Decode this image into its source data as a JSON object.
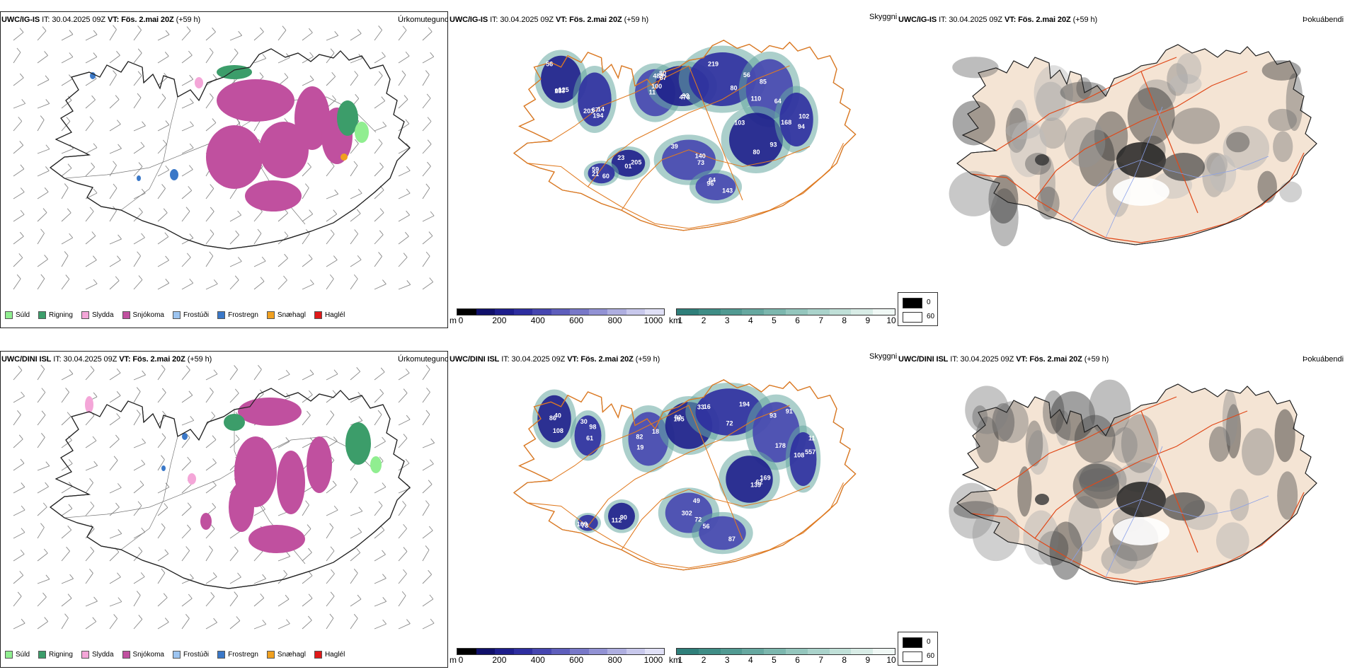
{
  "rows": [
    {
      "model": "UWC/IG-IS",
      "it_label": "IT:",
      "it_value": "30.04.2025 09Z",
      "vt_label": "VT:",
      "vt_value": "Fös. 2.mai 20Z",
      "lead": "(+59 h)"
    },
    {
      "model": "UWC/DINI ISL",
      "it_label": "IT:",
      "it_value": "30.04.2025 09Z",
      "vt_label": "VT:",
      "vt_value": "Fös. 2.mai 20Z",
      "lead": "(+59 h)"
    }
  ],
  "panel_titles": {
    "precip": "Úrkomutegund",
    "visibility": "Skyggni",
    "fog": "Þokuábendi"
  },
  "precip_legend": [
    {
      "label": "Súld",
      "color": "#90ee90"
    },
    {
      "label": "Rigning",
      "color": "#3c9d6a"
    },
    {
      "label": "Slydda",
      "color": "#f4a6d8"
    },
    {
      "label": "Snjókoma",
      "color": "#c0509f"
    },
    {
      "label": "Frostúði",
      "color": "#9cc4f0"
    },
    {
      "label": "Frostregn",
      "color": "#3a78c8"
    },
    {
      "label": "Snæhagl",
      "color": "#f0a020"
    },
    {
      "label": "Haglél",
      "color": "#e01818"
    }
  ],
  "vis_scale_m": {
    "unit": "m",
    "ticks": [
      "0",
      "200",
      "400",
      "600",
      "800",
      "1000"
    ],
    "colors": [
      "#000000",
      "#10106a",
      "#1e1e8c",
      "#2e2ea0",
      "#4646b0",
      "#5e5ebc",
      "#7878c8",
      "#9292d4",
      "#aeaee0",
      "#c8c8ec",
      "#e0e0f6"
    ]
  },
  "vis_scale_km": {
    "unit": "km",
    "ticks": [
      "1",
      "2",
      "3",
      "4",
      "5",
      "6",
      "7",
      "8",
      "9",
      "10"
    ],
    "colors": [
      "#2f7f7a",
      "#3f8d86",
      "#519a92",
      "#66a8a0",
      "#7cb7ae",
      "#94c6bd",
      "#aad3cb",
      "#c0e0d8",
      "#d8ece6",
      "#f0f8f5"
    ]
  },
  "fog_legend": [
    {
      "label": "0",
      "color": "#000000"
    },
    {
      "label": "60",
      "color": "#ffffff"
    }
  ],
  "vis_labels": {
    "row0": [
      "03",
      "67",
      "100",
      "80",
      "56",
      "110",
      "80",
      "168",
      "140",
      "23",
      "21",
      "143",
      "153",
      "194",
      "67",
      "92",
      "80",
      "64",
      "93",
      "102",
      "39",
      "205",
      "59",
      "96",
      "125",
      "203",
      "489",
      "473",
      "219",
      "85",
      "103",
      "94",
      "73",
      "01",
      "60",
      "64",
      "56",
      "14",
      "11"
    ],
    "row1": [
      "108",
      "30",
      "19",
      "92",
      "194",
      "178",
      "169",
      "108",
      "302",
      "112",
      "169",
      "56",
      "86",
      "61",
      "18",
      "33",
      "16",
      "91",
      "62",
      "557",
      "72",
      "90",
      "73",
      "87",
      "40",
      "98",
      "82",
      "105",
      "72",
      "93",
      "139",
      "11",
      "49"
    ]
  }
}
